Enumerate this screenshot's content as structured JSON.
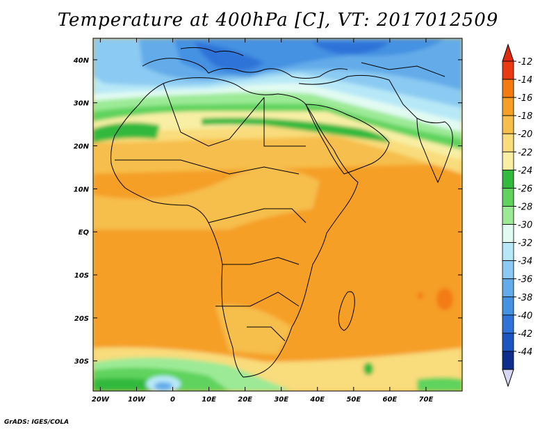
{
  "title": "Temperature at 400hPa [C], VT: 2017012509",
  "credit": "GrADS: IGES/COLA",
  "map": {
    "lon_range": [
      -22,
      80
    ],
    "lat_range": [
      -37,
      45
    ],
    "lat_ticks": [
      "40N",
      "30N",
      "20N",
      "10N",
      "EQ",
      "10S",
      "20S",
      "30S"
    ],
    "lat_values": [
      40,
      30,
      20,
      10,
      0,
      -10,
      -20,
      -30
    ],
    "lon_ticks": [
      "20W",
      "10W",
      "0",
      "10E",
      "20E",
      "30E",
      "40E",
      "50E",
      "60E",
      "70E"
    ],
    "lon_values": [
      -20,
      -10,
      0,
      10,
      20,
      30,
      40,
      50,
      60,
      70
    ]
  },
  "colorbar": {
    "labels": [
      "-12",
      "-14",
      "-16",
      "-18",
      "-20",
      "-22",
      "-24",
      "-26",
      "-28",
      "-30",
      "-32",
      "-34",
      "-36",
      "-38",
      "-40",
      "-42",
      "-44"
    ],
    "colors": [
      "#e93a12",
      "#f37b12",
      "#f59f27",
      "#f6be4c",
      "#f9dc7c",
      "#f8efa4",
      "#32b93e",
      "#5fd35d",
      "#9cea96",
      "#e2fbf2",
      "#b7e8f7",
      "#8bcaf2",
      "#63ace9",
      "#4591e2",
      "#2f73d8",
      "#1c55c0",
      "#0d2e8a"
    ],
    "top_arrow_color": "#e02a10",
    "bottom_arrow_color": "#d7d7f3"
  }
}
